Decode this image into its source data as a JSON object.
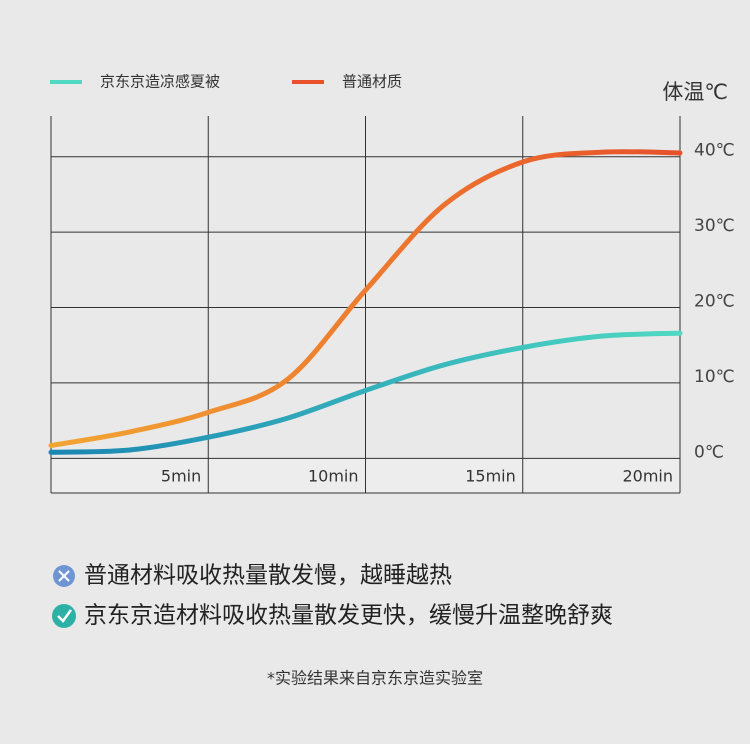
{
  "chart_data": {
    "type": "line",
    "y_label": "体温℃",
    "x": [
      0,
      2.5,
      5,
      7.5,
      10,
      12.5,
      15,
      17.5,
      20
    ],
    "series": [
      {
        "name": "京东京造凉感夏被",
        "color": "#4fd9c2",
        "gradient_start": "#1a86b3",
        "values": [
          0.8,
          1.1,
          2.8,
          5.3,
          9.0,
          12.4,
          14.7,
          16.2,
          16.6
        ]
      },
      {
        "name": "普通材质",
        "color": "#e8512b",
        "gradient_start": "#f2a533",
        "values": [
          1.7,
          3.5,
          6.1,
          10.4,
          22.3,
          33.6,
          39.3,
          40.6,
          40.5
        ]
      }
    ],
    "xlim": [
      0,
      20
    ],
    "xticks": [
      {
        "value": 5,
        "label": "5min"
      },
      {
        "value": 10,
        "label": "10min"
      },
      {
        "value": 15,
        "label": "15min"
      },
      {
        "value": 20,
        "label": "20min"
      }
    ],
    "ylim": [
      -4.6,
      45.4
    ],
    "yticks": [
      {
        "value": 0,
        "label": "0℃"
      },
      {
        "value": 10,
        "label": "10℃"
      },
      {
        "value": 20,
        "label": "20℃"
      },
      {
        "value": 30,
        "label": "30℃"
      },
      {
        "value": 40,
        "label": "40℃"
      }
    ],
    "grid": true
  },
  "notes": [
    "普通材料吸收热量散发慢，越睡越热",
    "京东京造材料吸收热量散发更快，缓慢升温整晚舒爽"
  ],
  "footnote": "*实验结果来自京东京造实验室"
}
